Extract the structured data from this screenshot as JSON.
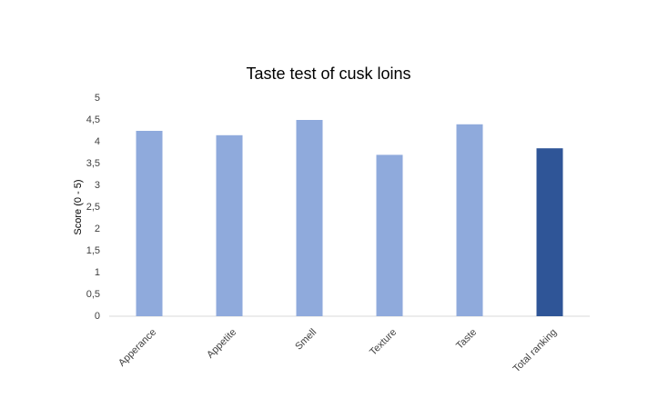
{
  "chart_data": {
    "type": "bar",
    "title": "Taste test of cusk loins",
    "y_label": "Score (0 - 5)",
    "categories": [
      "Apperance",
      "Appetite",
      "Smell",
      "Texture",
      "Taste",
      "Total ranking"
    ],
    "values": [
      4.25,
      4.15,
      4.5,
      3.7,
      4.4,
      3.85
    ],
    "colors": [
      "#8faadc",
      "#8faadc",
      "#8faadc",
      "#8faadc",
      "#8faadc",
      "#2f5597"
    ],
    "ylim": [
      0,
      5
    ],
    "yticks": [
      0,
      {
        "value": 0.5,
        "label": "0,5"
      },
      1,
      {
        "value": 1.5,
        "label": "1,5"
      },
      2,
      {
        "value": 2.5,
        "label": "2,5"
      },
      3,
      {
        "value": 3.5,
        "label": "3,5"
      },
      4,
      {
        "value": 4.5,
        "label": "4,5"
      },
      5
    ],
    "grid": false
  }
}
